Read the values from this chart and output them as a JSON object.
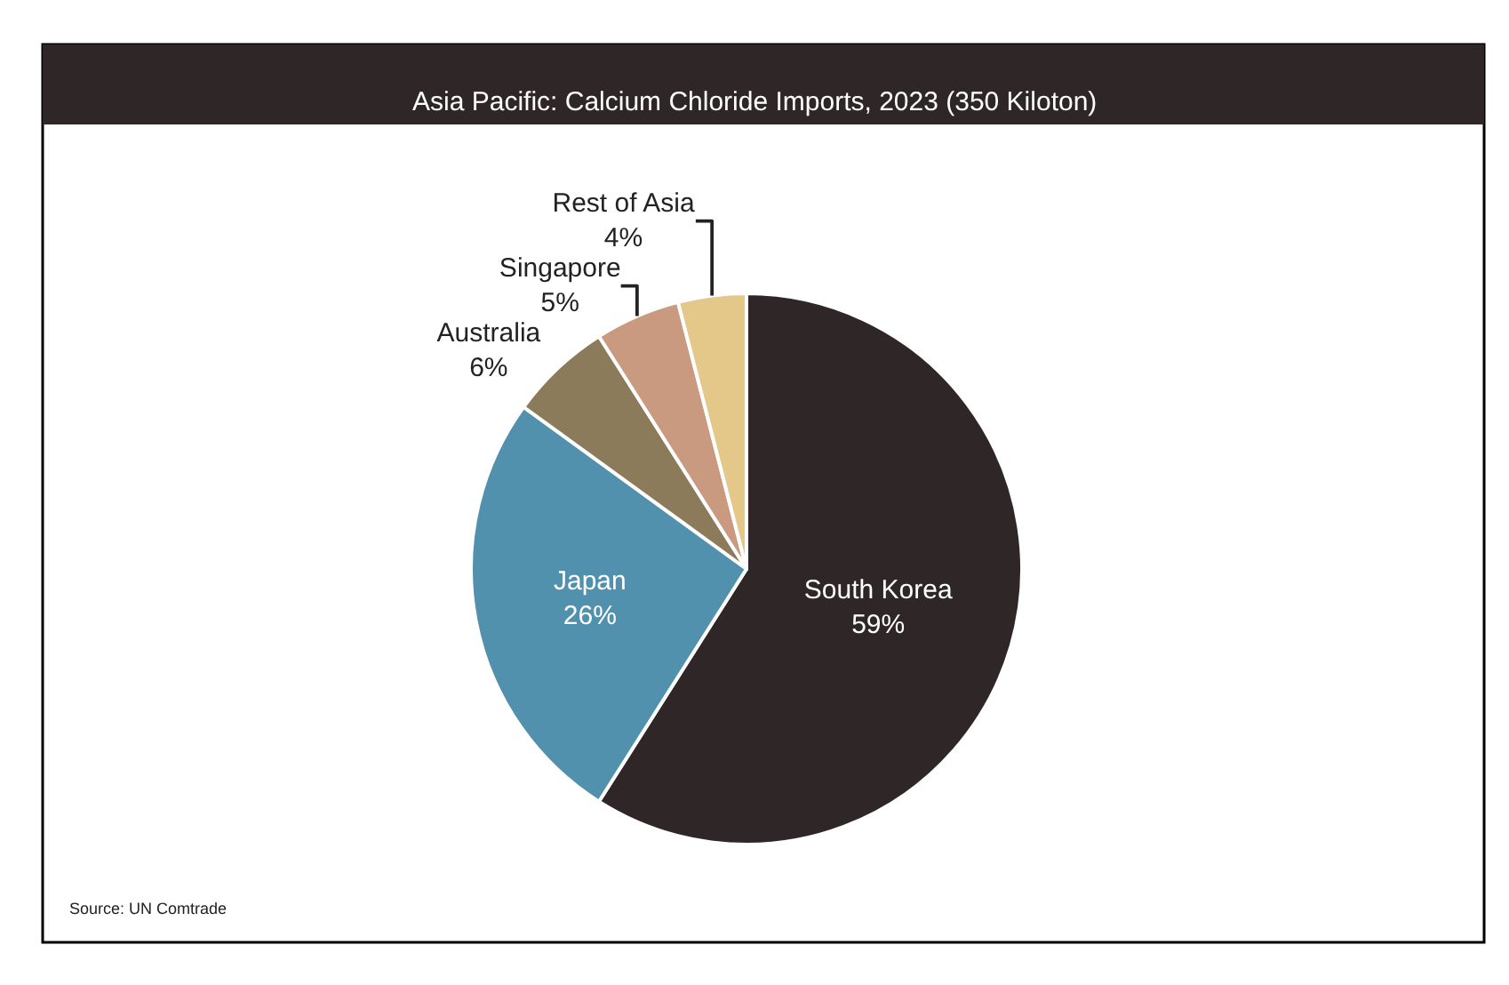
{
  "chart_data": {
    "type": "pie",
    "title": "Asia Pacific: Calcium Chloride Imports, 2023 (350 Kiloton)",
    "categories": [
      "South Korea",
      "Japan",
      "Australia",
      "Singapore",
      "Rest of Asia"
    ],
    "values": [
      59,
      26,
      6,
      5,
      4
    ],
    "value_labels": [
      "59%",
      "26%",
      "6%",
      "5%",
      "4%"
    ],
    "colors": [
      "#2f2727",
      "#5191ad",
      "#8b7b5a",
      "#c99a80",
      "#e3c88a"
    ],
    "annotations": [
      "Source: UN Comtrade"
    ],
    "legend": false
  }
}
